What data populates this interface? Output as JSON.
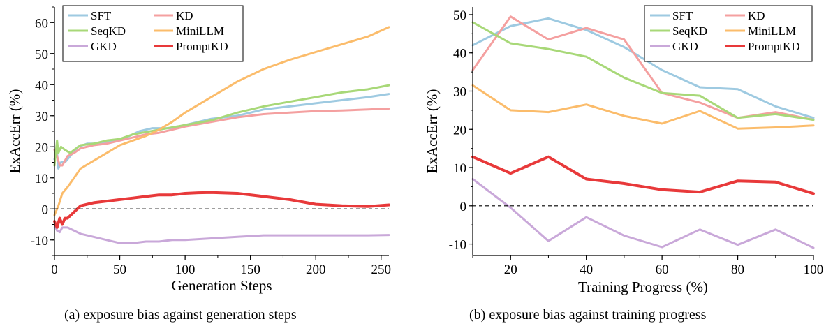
{
  "captions": {
    "a": "(a)  exposure bias against generation steps",
    "b": "(b)  exposure bias against training progress"
  },
  "chart_data": [
    {
      "type": "line",
      "xlabel": "Generation Steps",
      "ylabel": "ExAccErr (%)",
      "xlim": [
        0,
        256
      ],
      "ylim": [
        -15,
        65
      ],
      "xticks": [
        0,
        50,
        100,
        150,
        200,
        250
      ],
      "yticks": [
        -10,
        0,
        10,
        20,
        30,
        40,
        50,
        60
      ],
      "reference_line": 0,
      "legend": "top-left",
      "grid": false,
      "series": [
        {
          "name": "SFT",
          "color": "#9ecae1",
          "x": [
            0,
            2,
            3,
            5,
            8,
            12,
            18,
            25,
            35,
            45,
            55,
            65,
            75,
            90,
            100,
            120,
            140,
            160,
            180,
            200,
            220,
            240,
            256
          ],
          "y": [
            16,
            18,
            13,
            15,
            15,
            17,
            20,
            21,
            21,
            22,
            23,
            25,
            26,
            26,
            27,
            29,
            30,
            32,
            33,
            34,
            35,
            36,
            37
          ]
        },
        {
          "name": "KD",
          "color": "#f4a0a0",
          "x": [
            0,
            2,
            4,
            6,
            10,
            15,
            20,
            30,
            40,
            50,
            60,
            70,
            80,
            90,
            100,
            120,
            140,
            160,
            180,
            200,
            220,
            240,
            256
          ],
          "y": [
            19,
            17,
            14,
            14,
            17,
            18,
            19.5,
            20.5,
            21,
            22,
            23,
            24,
            24.5,
            25.5,
            26.5,
            28,
            29.5,
            30.5,
            31,
            31.5,
            31.7,
            32,
            32.3
          ]
        },
        {
          "name": "SeqKD",
          "color": "#a8d878",
          "x": [
            0,
            2,
            3,
            5,
            8,
            12,
            15,
            20,
            30,
            40,
            50,
            60,
            80,
            100,
            120,
            140,
            160,
            180,
            200,
            220,
            240,
            256
          ],
          "y": [
            14,
            22,
            18,
            20,
            19,
            18,
            19,
            20.5,
            21,
            22,
            22.5,
            24,
            25.5,
            27,
            28.5,
            31,
            33,
            34.5,
            36,
            37.5,
            38.5,
            39.8
          ]
        },
        {
          "name": "MiniLLM",
          "color": "#fbbc6b",
          "x": [
            0,
            3,
            6,
            10,
            15,
            20,
            30,
            40,
            50,
            60,
            70,
            80,
            90,
            100,
            120,
            140,
            160,
            180,
            200,
            220,
            240,
            256
          ],
          "y": [
            -2,
            1,
            5,
            7,
            10,
            13,
            15.5,
            18,
            20.5,
            22,
            23.5,
            25.5,
            28,
            31,
            36,
            41,
            45,
            48,
            50.5,
            53,
            55.5,
            58.5
          ]
        },
        {
          "name": "GKD",
          "color": "#c9a8d9",
          "x": [
            0,
            2,
            4,
            6,
            8,
            10,
            15,
            20,
            30,
            40,
            50,
            60,
            70,
            80,
            90,
            100,
            120,
            140,
            160,
            180,
            200,
            220,
            240,
            256
          ],
          "y": [
            -5,
            -7,
            -7.5,
            -6,
            -6,
            -6,
            -7,
            -8,
            -9,
            -10,
            -11,
            -11,
            -10.5,
            -10.5,
            -10,
            -10,
            -9.5,
            -9,
            -8.5,
            -8.5,
            -8.5,
            -8.5,
            -8.5,
            -8.4
          ]
        },
        {
          "name": "PromptKD",
          "color": "#e8393a",
          "x": [
            0,
            2,
            4,
            6,
            8,
            10,
            15,
            20,
            30,
            40,
            50,
            60,
            70,
            80,
            90,
            100,
            110,
            120,
            140,
            160,
            180,
            200,
            220,
            240,
            256
          ],
          "y": [
            -4,
            -6,
            -3,
            -5,
            -3,
            -3,
            -1,
            1,
            2,
            2.5,
            3,
            3.5,
            4,
            4.5,
            4.5,
            5,
            5.2,
            5.3,
            5,
            4,
            3,
            1.5,
            1,
            0.8,
            1.3
          ]
        }
      ]
    },
    {
      "type": "line",
      "xlabel": "Training Progress (%)",
      "ylabel": "ExAccErr (%)",
      "xlim": [
        10,
        100
      ],
      "ylim": [
        -13,
        52
      ],
      "xticks": [
        20,
        40,
        60,
        80,
        100
      ],
      "yticks": [
        -10,
        0,
        10,
        20,
        30,
        40,
        50
      ],
      "reference_line": 0,
      "legend": "top-right",
      "grid": false,
      "series": [
        {
          "name": "SFT",
          "color": "#9ecae1",
          "x": [
            10,
            20,
            30,
            40,
            50,
            60,
            70,
            80,
            90,
            100
          ],
          "y": [
            42,
            47,
            49,
            46,
            41.5,
            35.5,
            31,
            30.5,
            26,
            23
          ]
        },
        {
          "name": "KD",
          "color": "#f4a0a0",
          "x": [
            10,
            20,
            30,
            40,
            50,
            60,
            70,
            80,
            90,
            100
          ],
          "y": [
            35.5,
            49.5,
            43.5,
            46.5,
            43.5,
            29.5,
            27,
            23,
            24.5,
            22.5
          ]
        },
        {
          "name": "SeqKD",
          "color": "#a8d878",
          "x": [
            10,
            20,
            30,
            40,
            50,
            60,
            70,
            80,
            90,
            100
          ],
          "y": [
            48,
            42.5,
            41,
            39,
            33.5,
            29.5,
            28.8,
            23,
            24,
            22.5
          ]
        },
        {
          "name": "MiniLLM",
          "color": "#fbbc6b",
          "x": [
            10,
            20,
            30,
            40,
            50,
            60,
            70,
            80,
            90,
            100
          ],
          "y": [
            31.5,
            25,
            24.5,
            26.5,
            23.5,
            21.5,
            24.8,
            20.2,
            20.5,
            21
          ]
        },
        {
          "name": "GKD",
          "color": "#c9a8d9",
          "x": [
            10,
            20,
            30,
            40,
            50,
            60,
            70,
            80,
            90,
            100
          ],
          "y": [
            7,
            -0.5,
            -9.2,
            -3,
            -7.8,
            -10.8,
            -6.2,
            -10.2,
            -6.2,
            -11
          ]
        },
        {
          "name": "PromptKD",
          "color": "#e8393a",
          "x": [
            10,
            20,
            30,
            40,
            50,
            60,
            70,
            80,
            90,
            100
          ],
          "y": [
            12.8,
            8.5,
            12.8,
            7,
            5.8,
            4.2,
            3.6,
            6.5,
            6.2,
            3.2
          ]
        }
      ]
    }
  ]
}
